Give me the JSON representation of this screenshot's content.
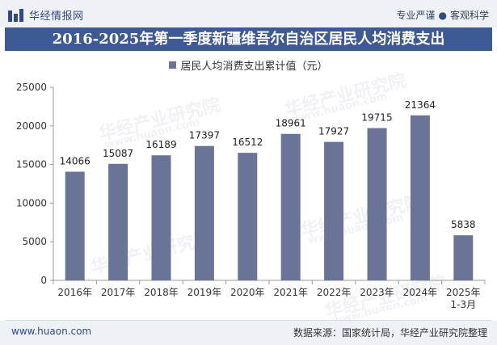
{
  "header": {
    "logo_text": "华经情报网",
    "tagline_left": "专业严谨",
    "tagline_dot": "●",
    "tagline_right": "客观科学"
  },
  "watermark": {
    "text": "华经产业研究院",
    "url": "www.huaon.com"
  },
  "footer": {
    "website": "www.huaon.com",
    "source": "数据来源：国家统计局，华经产业研究院整理"
  },
  "colors": {
    "bar": "#6a7496",
    "title_bar": "#3e5a94",
    "header_bg": "#eef1f6"
  },
  "chart_data": {
    "type": "bar",
    "title": "2016-2025年第一季度新疆维吾尔自治区居民人均消费支出",
    "categories": [
      "2016年",
      "2017年",
      "2018年",
      "2019年",
      "2020年",
      "2021年",
      "2022年",
      "2023年",
      "2024年",
      "2025年1-3月"
    ],
    "series": [
      {
        "name": "居民人均消费支出累计值（元）",
        "values": [
          14066,
          15087,
          16189,
          17397,
          16512,
          18961,
          17927,
          19715,
          21364,
          5838
        ]
      }
    ],
    "yticks": [
      "0",
      "5000",
      "10000",
      "15000",
      "20000",
      "25000"
    ],
    "ylim": [
      0,
      25000
    ],
    "grid": false,
    "legend_position": "top-center",
    "data_labels": true
  }
}
